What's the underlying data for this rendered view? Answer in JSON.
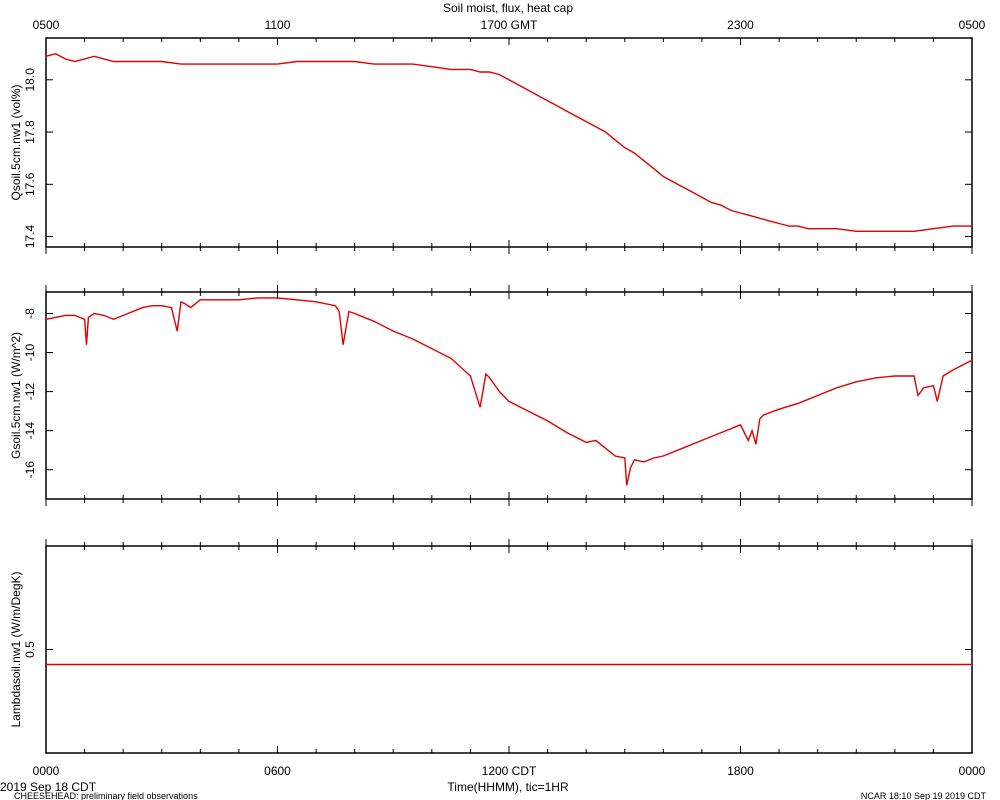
{
  "title": "Soil moist, flux, heat cap",
  "top_axis": {
    "ticks": [
      "0500",
      "1100",
      "1700 GMT",
      "2300",
      "0500"
    ]
  },
  "bottom_axis": {
    "ticks": [
      "0000",
      "0600",
      "1200 CDT",
      "1800",
      "0000"
    ],
    "label": "Time(HHMM), tic=1HR"
  },
  "footer": {
    "date": "2019 Sep 18 CDT",
    "note": "CHEESEHEAD: preliminary field observations",
    "credit": "NCAR 18:10 Sep 19 2019 CDT"
  },
  "colors": {
    "series": "#e00000",
    "axes": "#000000"
  },
  "chart_data": [
    {
      "type": "line",
      "ylabel": "Qsoil.5cm.nw1 (vol%)",
      "ylim": [
        17.36,
        18.16
      ],
      "yticks": [
        17.4,
        17.6,
        17.8,
        18.0
      ],
      "ytick_labels": [
        "17.4",
        "17.6",
        "17.8",
        "18.0"
      ],
      "xlim": [
        0,
        24
      ],
      "x": [
        0,
        0.25,
        0.5,
        0.75,
        1,
        1.25,
        1.5,
        1.75,
        2,
        2.5,
        3,
        3.5,
        4,
        4.5,
        5,
        5.5,
        6,
        6.5,
        7,
        7.5,
        8,
        8.5,
        9,
        9.5,
        10,
        10.5,
        11,
        11.25,
        11.5,
        11.75,
        12,
        12.25,
        12.5,
        12.75,
        13,
        13.25,
        13.5,
        13.75,
        14,
        14.25,
        14.5,
        14.75,
        15,
        15.25,
        15.5,
        15.75,
        16,
        16.25,
        16.5,
        16.75,
        17,
        17.25,
        17.5,
        17.75,
        18,
        18.25,
        18.5,
        18.75,
        19,
        19.25,
        19.5,
        19.75,
        20,
        20.5,
        21,
        21.5,
        22,
        22.5,
        23,
        23.5,
        24
      ],
      "y": [
        18.09,
        18.1,
        18.08,
        18.07,
        18.08,
        18.09,
        18.08,
        18.07,
        18.07,
        18.07,
        18.07,
        18.06,
        18.06,
        18.06,
        18.06,
        18.06,
        18.06,
        18.07,
        18.07,
        18.07,
        18.07,
        18.06,
        18.06,
        18.06,
        18.05,
        18.04,
        18.04,
        18.03,
        18.03,
        18.02,
        18.0,
        17.98,
        17.96,
        17.94,
        17.92,
        17.9,
        17.88,
        17.86,
        17.84,
        17.82,
        17.8,
        17.77,
        17.74,
        17.72,
        17.69,
        17.66,
        17.63,
        17.61,
        17.59,
        17.57,
        17.55,
        17.53,
        17.52,
        17.5,
        17.49,
        17.48,
        17.47,
        17.46,
        17.45,
        17.44,
        17.44,
        17.43,
        17.43,
        17.43,
        17.42,
        17.42,
        17.42,
        17.42,
        17.43,
        17.44,
        17.44
      ]
    },
    {
      "type": "line",
      "ylabel": "Gsoil.5cm.nw1 (W/m^2)",
      "ylim": [
        -17.5,
        -6.9
      ],
      "yticks": [
        -16,
        -14,
        -12,
        -10,
        -8
      ],
      "ytick_labels": [
        "-16",
        "-14",
        "-12",
        "-10",
        "-8"
      ],
      "xlim": [
        0,
        24
      ],
      "x": [
        0,
        0.25,
        0.5,
        0.75,
        1,
        1.05,
        1.1,
        1.25,
        1.5,
        1.75,
        2,
        2.5,
        2.75,
        3,
        3.25,
        3.4,
        3.5,
        3.6,
        3.75,
        4,
        4.5,
        5,
        5.5,
        6,
        6.5,
        7,
        7.5,
        7.6,
        7.7,
        7.85,
        8,
        8.5,
        9,
        9.5,
        10,
        10.5,
        11,
        11.25,
        11.4,
        11.5,
        11.75,
        12,
        12.5,
        13,
        13.5,
        14,
        14.25,
        14.5,
        14.75,
        15,
        15.05,
        15.15,
        15.25,
        15.5,
        15.75,
        16,
        16.5,
        17,
        17.5,
        18,
        18.2,
        18.3,
        18.4,
        18.5,
        18.6,
        19,
        19.5,
        20,
        20.5,
        21,
        21.5,
        22,
        22.5,
        22.6,
        22.75,
        23,
        23.1,
        23.25,
        23.5,
        24
      ],
      "y": [
        -8.3,
        -8.2,
        -8.1,
        -8.1,
        -8.3,
        -9.6,
        -8.2,
        -8.0,
        -8.1,
        -8.3,
        -8.1,
        -7.7,
        -7.6,
        -7.6,
        -7.7,
        -8.9,
        -7.4,
        -7.5,
        -7.7,
        -7.3,
        -7.3,
        -7.3,
        -7.2,
        -7.2,
        -7.3,
        -7.4,
        -7.6,
        -7.9,
        -9.6,
        -7.9,
        -8.0,
        -8.4,
        -8.9,
        -9.3,
        -9.8,
        -10.3,
        -11.2,
        -12.8,
        -11.1,
        -11.3,
        -12.0,
        -12.5,
        -13.0,
        -13.5,
        -14.1,
        -14.6,
        -14.5,
        -14.9,
        -15.3,
        -15.4,
        -16.8,
        -15.9,
        -15.5,
        -15.6,
        -15.4,
        -15.3,
        -14.9,
        -14.5,
        -14.1,
        -13.7,
        -14.5,
        -14.0,
        -14.7,
        -13.4,
        -13.2,
        -12.9,
        -12.6,
        -12.2,
        -11.8,
        -11.5,
        -11.3,
        -11.2,
        -11.2,
        -12.2,
        -11.8,
        -11.7,
        -12.5,
        -11.2,
        -10.9,
        -10.4
      ]
    },
    {
      "type": "line",
      "ylabel": "Lambdasoil.nw1 (W/m/DegK)",
      "ylim": [
        -0.4,
        1.4
      ],
      "yticks": [
        0.5
      ],
      "ytick_labels": [
        "0.5"
      ],
      "xlim": [
        0,
        24
      ],
      "x": [
        0,
        24
      ],
      "y": [
        0.37,
        0.37
      ]
    }
  ]
}
